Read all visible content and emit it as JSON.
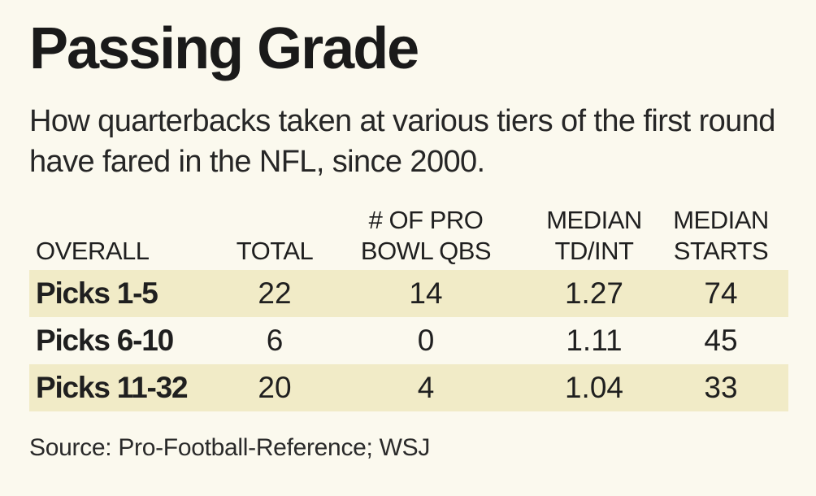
{
  "chart_data": {
    "type": "table",
    "title": "Passing Grade",
    "subtitle": "How quarterbacks taken at various tiers of the first round have fared in the NFL, since 2000.",
    "columns": [
      {
        "lines": [
          "OVERALL"
        ]
      },
      {
        "lines": [
          "TOTAL"
        ]
      },
      {
        "lines": [
          "# OF PRO",
          "BOWL QBS"
        ]
      },
      {
        "lines": [
          "MEDIAN",
          "TD/INT"
        ]
      },
      {
        "lines": [
          "MEDIAN",
          "STARTS"
        ]
      }
    ],
    "rows": [
      {
        "label": "Picks 1-5",
        "total": 22,
        "pro_bowl_qbs": 14,
        "median_td_int": "1.27",
        "median_starts": 74
      },
      {
        "label": "Picks 6-10",
        "total": 6,
        "pro_bowl_qbs": 0,
        "median_td_int": "1.11",
        "median_starts": 45
      },
      {
        "label": "Picks 11-32",
        "total": 20,
        "pro_bowl_qbs": 4,
        "median_td_int": "1.04",
        "median_starts": 33
      }
    ],
    "source": "Source: Pro-Football-Reference;  WSJ"
  },
  "colors": {
    "background": "#fbf9ee",
    "row_shade": "#f1ebc7",
    "text": "#1f1f1f"
  }
}
